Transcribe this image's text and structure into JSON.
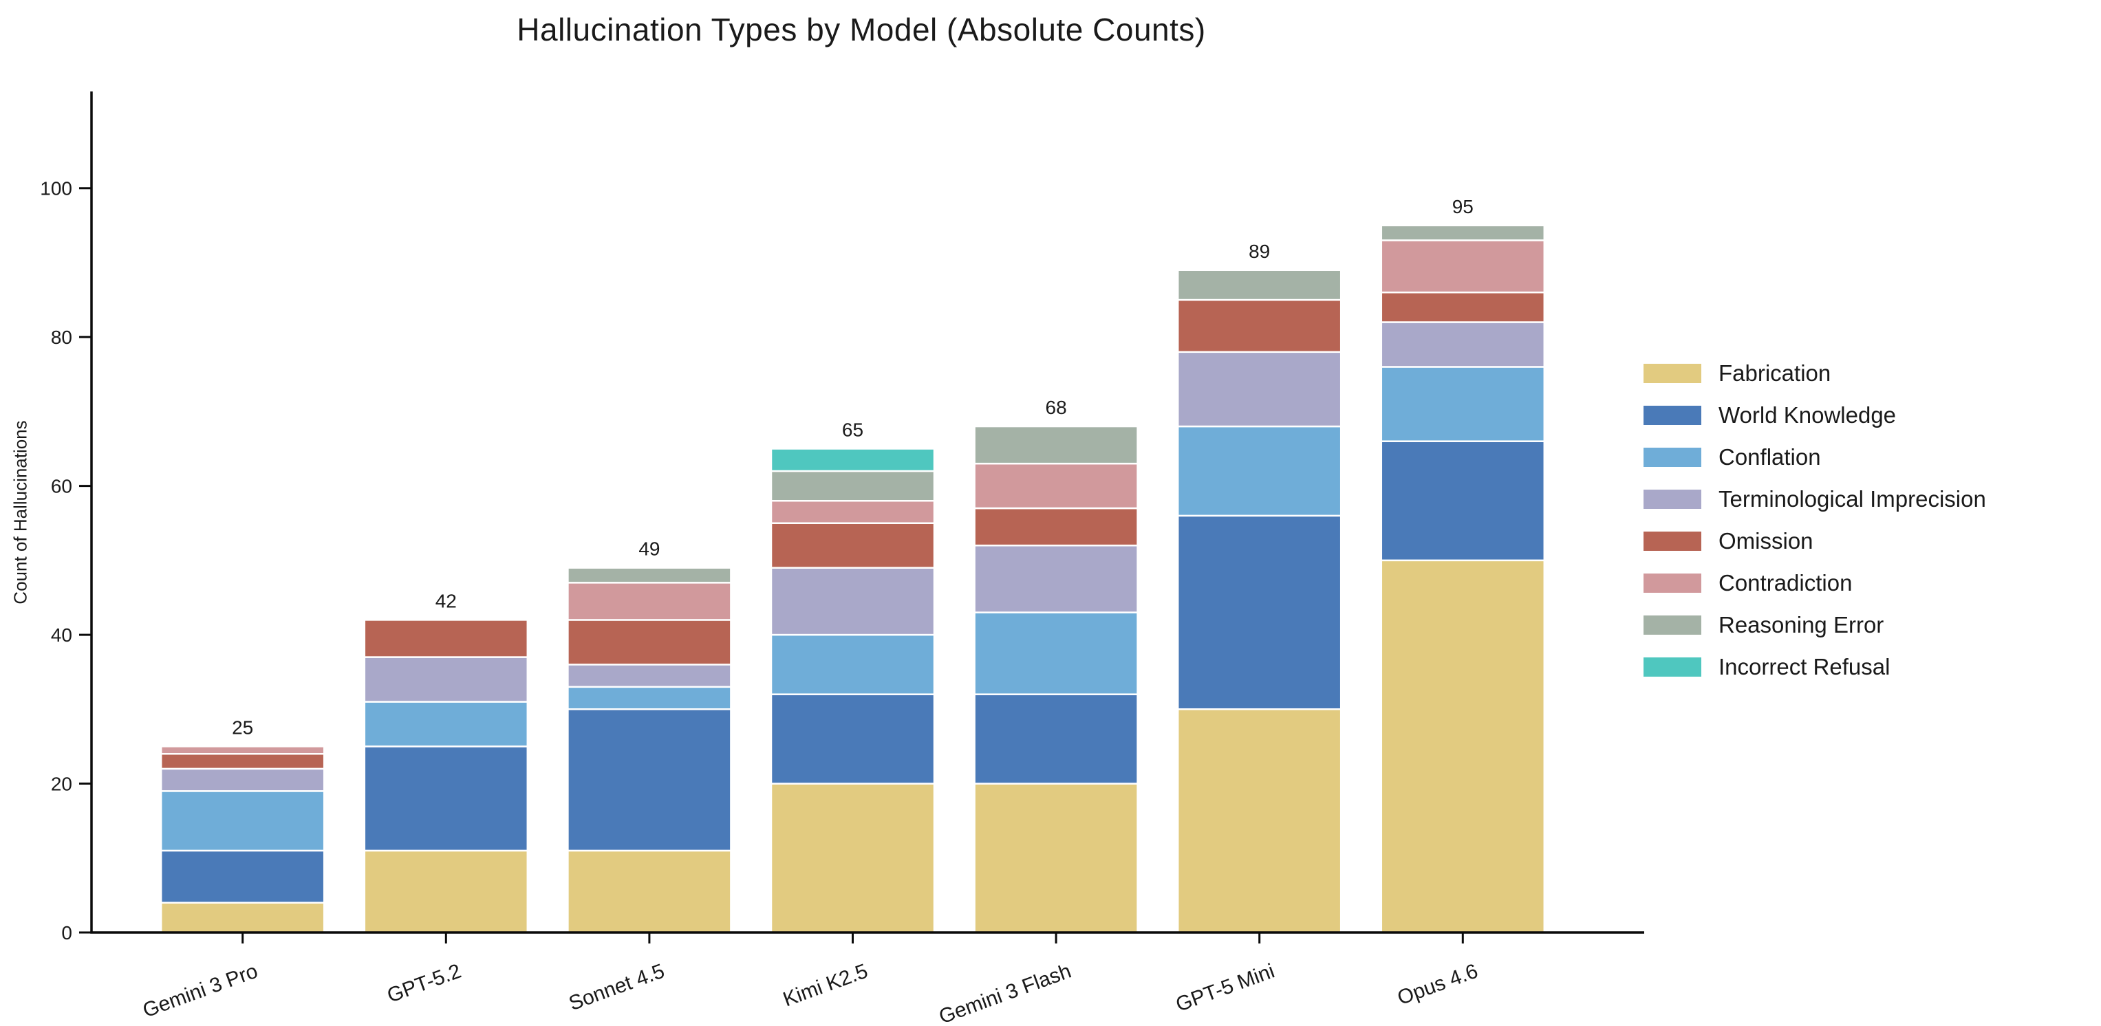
{
  "title": "Hallucination Types by Model (Absolute Counts)",
  "chart_data": {
    "type": "bar",
    "stacked": true,
    "title": "Hallucination Types by Model (Absolute Counts)",
    "xlabel": "",
    "ylabel": "Count of Hallucinations",
    "categories": [
      "Gemini 3 Pro",
      "GPT-5.2",
      "Sonnet 4.5",
      "Kimi K2.5",
      "Gemini 3 Flash",
      "GPT-5 Mini",
      "Opus 4.6"
    ],
    "series": [
      {
        "name": "Fabrication",
        "color": "#e2cb80",
        "values": [
          4,
          11,
          11,
          20,
          20,
          30,
          50
        ]
      },
      {
        "name": "World Knowledge",
        "color": "#4a7ab8",
        "values": [
          7,
          14,
          19,
          12,
          12,
          26,
          16
        ]
      },
      {
        "name": "Conflation",
        "color": "#6fadd8",
        "values": [
          8,
          6,
          3,
          8,
          11,
          12,
          10
        ]
      },
      {
        "name": "Terminological Imprecision",
        "color": "#a9a8c9",
        "values": [
          3,
          6,
          3,
          9,
          9,
          10,
          6
        ]
      },
      {
        "name": "Omission",
        "color": "#b76454",
        "values": [
          2,
          5,
          6,
          6,
          5,
          7,
          4
        ]
      },
      {
        "name": "Contradiction",
        "color": "#d1999c",
        "values": [
          1,
          0,
          5,
          3,
          6,
          0,
          7
        ]
      },
      {
        "name": "Reasoning Error",
        "color": "#a4b2a6",
        "values": [
          0,
          0,
          2,
          4,
          5,
          4,
          2
        ]
      },
      {
        "name": "Incorrect Refusal",
        "color": "#4fc7bf",
        "values": [
          0,
          0,
          0,
          3,
          0,
          0,
          0
        ]
      }
    ],
    "bar_total_labels": [
      "25",
      "42",
      "49",
      "65",
      "68",
      "89",
      "95"
    ],
    "ytick_labels": [
      "0",
      "20",
      "40",
      "60",
      "80",
      "100"
    ],
    "yticks": [
      0,
      20,
      40,
      60,
      80,
      100
    ],
    "ylim": [
      0,
      113
    ],
    "grid": false,
    "legend_position": "right",
    "axis_color": "#0a0a0a",
    "text_color": "#1a1a1a",
    "segment_edge_color": "#ffffff"
  }
}
